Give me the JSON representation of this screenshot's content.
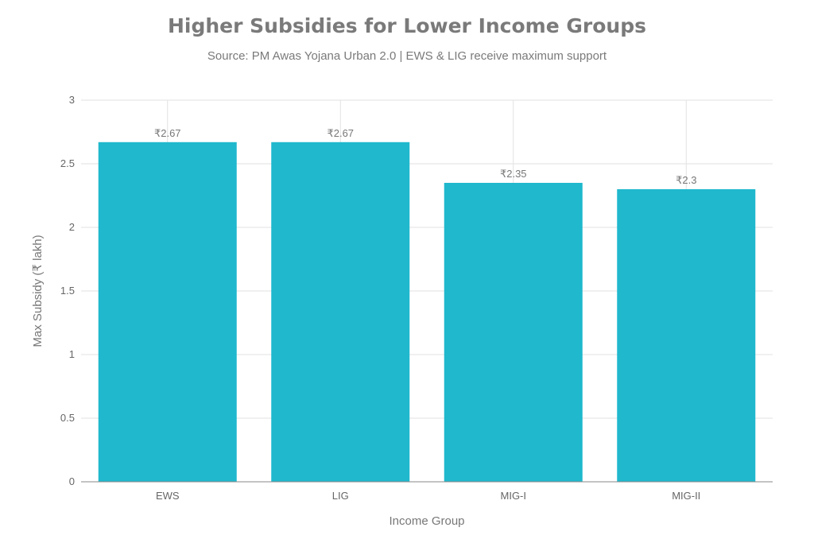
{
  "chart_data": {
    "type": "bar",
    "title": "Higher Subsidies for Lower Income Groups",
    "subtitle": "Source: PM Awas Yojana Urban 2.0 | EWS & LIG receive maximum support",
    "xlabel": "Income Group",
    "ylabel": "Max Subsidy (₹ lakh)",
    "categories": [
      "EWS",
      "LIG",
      "MIG-I",
      "MIG-II"
    ],
    "values": [
      2.67,
      2.67,
      2.35,
      2.3
    ],
    "data_labels": [
      "₹2.67",
      "₹2.67",
      "₹2.35",
      "₹2.3"
    ],
    "ylim": [
      0,
      3
    ],
    "yticks": [
      0,
      0.5,
      1,
      1.5,
      2,
      2.5,
      3
    ],
    "ytick_labels": [
      "0",
      "0.5",
      "1",
      "1.5",
      "2",
      "2.5",
      "3"
    ],
    "grid": true,
    "bar_color": "#1FB8CD"
  }
}
